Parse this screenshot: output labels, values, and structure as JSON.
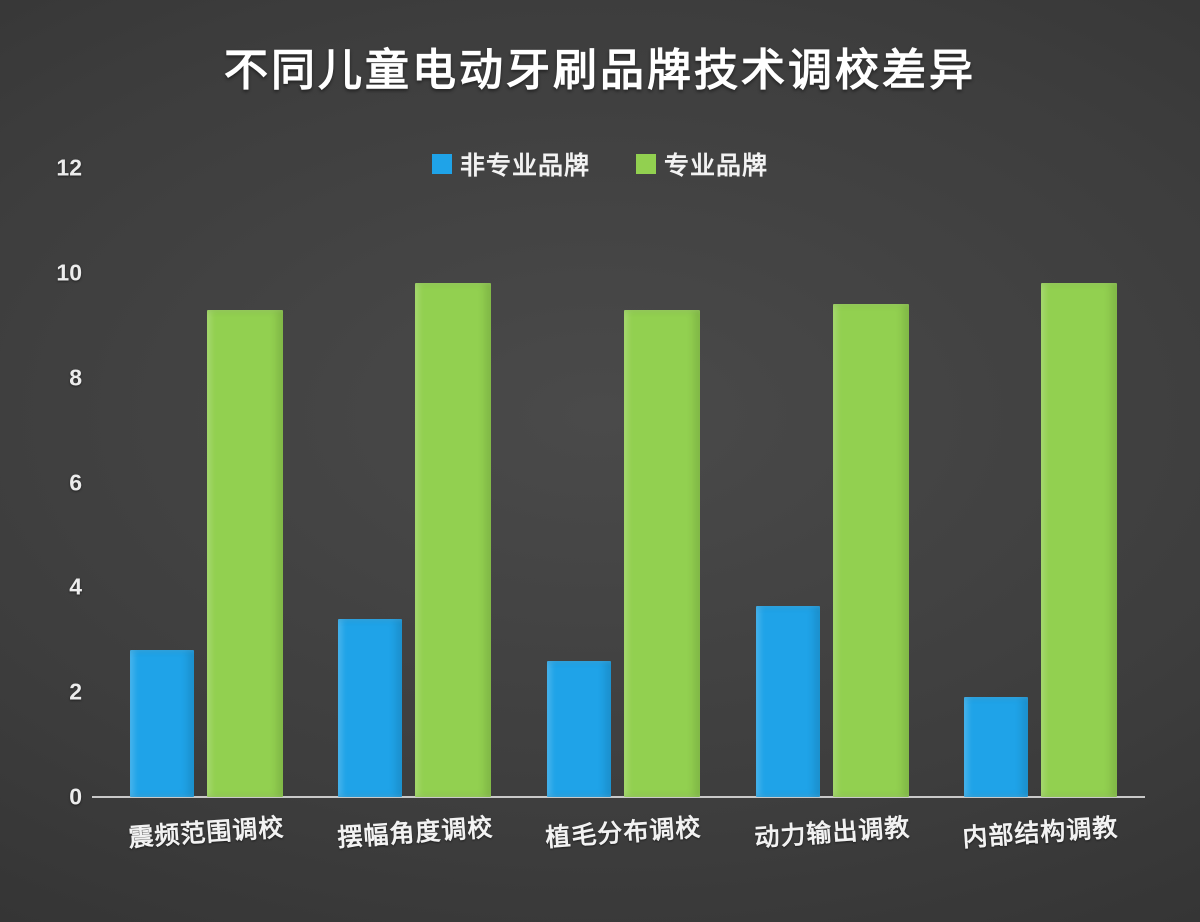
{
  "title": "不同儿童电动牙刷品牌技术调校差异",
  "colors": {
    "background_dark": "#2f2f2f",
    "axis": "#c9c9c9",
    "text": "#f2f2f2",
    "non_professional_blue": "#1fa3e8",
    "professional_green": "#92d050"
  },
  "chart_data": {
    "type": "bar",
    "title": "不同儿童电动牙刷品牌技术调校差异",
    "categories": [
      "震频范围调校",
      "摆幅角度调校",
      "植毛分布调校",
      "动力输出调教",
      "内部结构调教"
    ],
    "series": [
      {
        "name": "非专业品牌",
        "color": "#1fa3e8",
        "values": [
          2.8,
          3.4,
          2.6,
          3.65,
          1.9
        ]
      },
      {
        "name": "专业品牌",
        "color": "#92d050",
        "values": [
          9.3,
          9.8,
          9.3,
          9.4,
          9.8
        ]
      }
    ],
    "xlabel": "",
    "ylabel": "",
    "ylim": [
      0,
      12
    ],
    "yticks": [
      0,
      2,
      4,
      6,
      8,
      10,
      12
    ],
    "grid": false,
    "legend_position": "top-center"
  }
}
